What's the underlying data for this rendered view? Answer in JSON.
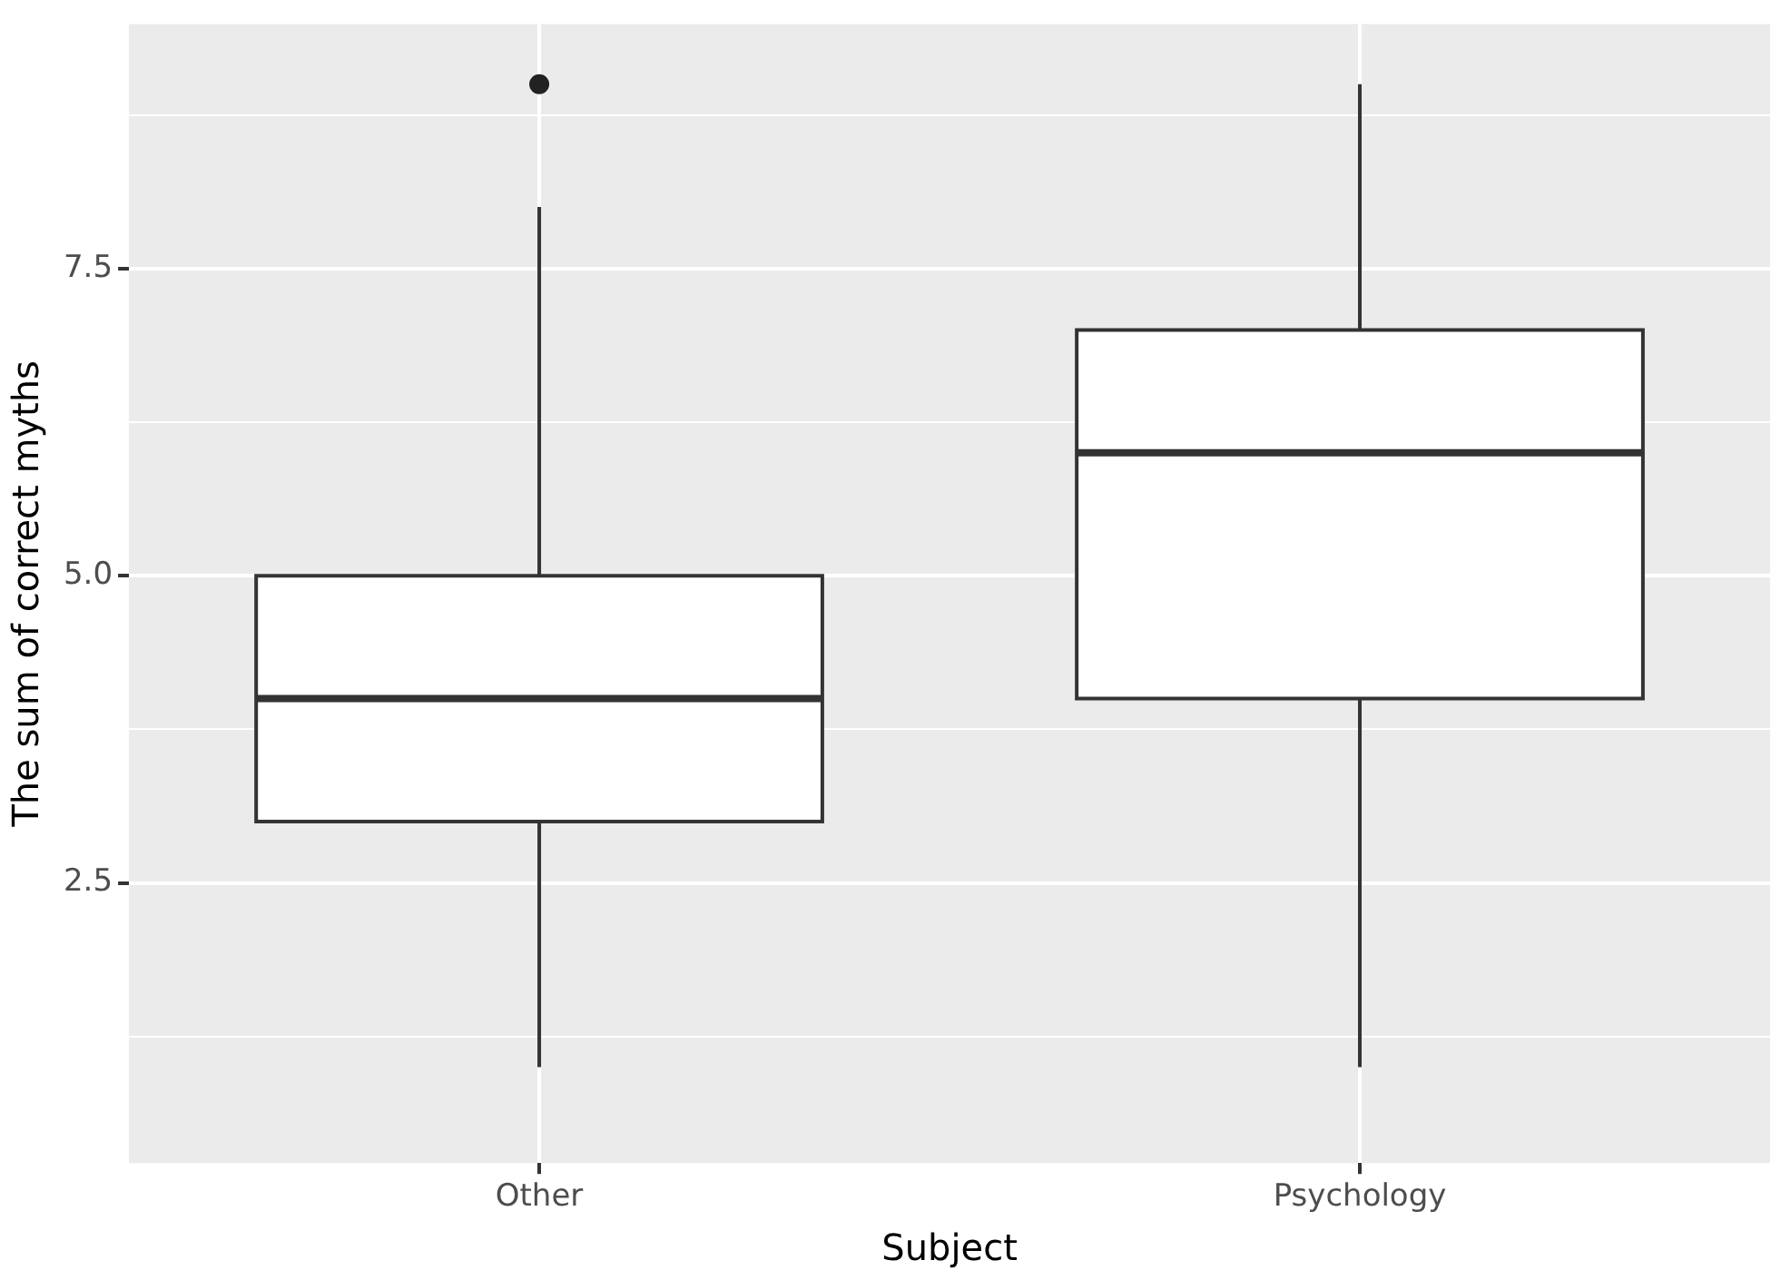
{
  "chart_data": {
    "type": "box",
    "xlabel": "Subject",
    "ylabel": "The sum of correct myths",
    "categories": [
      "Other",
      "Psychology"
    ],
    "boxes": [
      {
        "low": 1,
        "q1": 3,
        "median": 4,
        "q3": 5,
        "high": 8,
        "outliers": [
          9
        ]
      },
      {
        "low": 1,
        "q1": 4,
        "median": 6,
        "q3": 7,
        "high": 9
      }
    ],
    "ylim": [
      0.22,
      9.49
    ],
    "yticks": [
      {
        "value": 1.25,
        "label": null
      },
      2.5,
      {
        "value": 3.75,
        "label": null
      },
      {
        "value": 5,
        "label": "5.0"
      },
      {
        "value": 6.25,
        "label": null
      },
      7.5,
      {
        "value": 8.75,
        "label": null
      }
    ],
    "grid": true,
    "legend": false
  }
}
